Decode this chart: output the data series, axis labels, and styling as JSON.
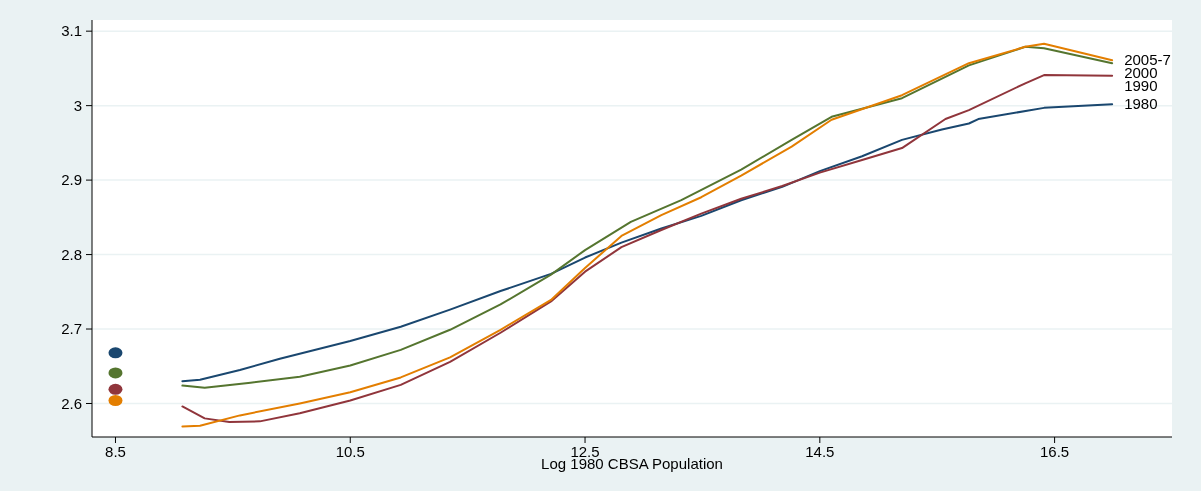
{
  "chart_data": {
    "type": "line",
    "xlabel": "Log 1980 CBSA Population",
    "xlim": [
      8.3,
      17.5
    ],
    "ylim": [
      2.555,
      3.115
    ],
    "xticks": [
      8.5,
      10.5,
      12.5,
      14.5,
      16.5
    ],
    "yticks": [
      2.6,
      2.7,
      2.8,
      2.9,
      3,
      3.1
    ],
    "grid": "y",
    "marker": "none",
    "line_style": "solid",
    "series": [
      {
        "name": "1980",
        "color": "#1a476f",
        "x": [
          9.07,
          9.22,
          9.56,
          9.9,
          10.5,
          10.93,
          11.35,
          11.78,
          12.21,
          12.5,
          12.81,
          13.15,
          13.49,
          13.83,
          14.18,
          14.5,
          14.86,
          15.2,
          15.54,
          15.77,
          15.85,
          16.41,
          16.99
        ],
        "values": [
          2.63,
          2.632,
          2.645,
          2.66,
          2.684,
          2.703,
          2.726,
          2.751,
          2.774,
          2.796,
          2.816,
          2.835,
          2.852,
          2.873,
          2.891,
          2.912,
          2.932,
          2.954,
          2.968,
          2.976,
          2.982,
          2.997,
          3.002
        ]
      },
      {
        "name": "1990",
        "color": "#90353b",
        "x": [
          9.07,
          9.26,
          9.47,
          9.73,
          10.07,
          10.5,
          10.93,
          11.35,
          11.78,
          12.21,
          12.5,
          12.81,
          13.15,
          13.49,
          13.83,
          14.18,
          14.5,
          14.86,
          15.2,
          15.57,
          15.77,
          16.25,
          16.41,
          16.99
        ],
        "values": [
          2.596,
          2.58,
          2.575,
          2.576,
          2.587,
          2.604,
          2.625,
          2.656,
          2.695,
          2.737,
          2.777,
          2.81,
          2.833,
          2.855,
          2.875,
          2.892,
          2.91,
          2.927,
          2.943,
          2.982,
          2.994,
          3.03,
          3.041,
          3.04
        ]
      },
      {
        "name": "2000",
        "color": "#55752f",
        "x": [
          9.07,
          9.26,
          9.65,
          10.07,
          10.5,
          10.93,
          11.35,
          11.78,
          12.21,
          12.5,
          12.89,
          13.32,
          13.83,
          14.26,
          14.6,
          15.2,
          15.77,
          16.25,
          16.41,
          16.99
        ],
        "values": [
          2.624,
          2.621,
          2.628,
          2.636,
          2.651,
          2.672,
          2.699,
          2.733,
          2.773,
          2.806,
          2.844,
          2.873,
          2.914,
          2.954,
          2.985,
          3.01,
          3.054,
          3.079,
          3.077,
          3.057
        ]
      },
      {
        "name": "2005-7",
        "color": "#e37e00",
        "x": [
          9.07,
          9.22,
          9.56,
          10.07,
          10.5,
          10.93,
          11.35,
          11.78,
          12.21,
          12.5,
          12.81,
          13.15,
          13.49,
          13.83,
          14.26,
          14.6,
          15.2,
          15.77,
          16.25,
          16.41,
          16.99
        ],
        "values": [
          2.569,
          2.57,
          2.584,
          2.6,
          2.615,
          2.635,
          2.662,
          2.699,
          2.739,
          2.782,
          2.825,
          2.853,
          2.877,
          2.906,
          2.945,
          2.981,
          3.014,
          3.057,
          3.079,
          3.083,
          3.061
        ]
      },
      {
        "type": "scatter",
        "marker": "circle",
        "color": "#1a476f",
        "x": [
          8.5
        ],
        "values": [
          2.668
        ]
      },
      {
        "type": "scatter",
        "marker": "circle",
        "color": "#55752f",
        "x": [
          8.5
        ],
        "values": [
          2.641
        ]
      },
      {
        "type": "scatter",
        "marker": "circle",
        "color": "#90353b",
        "x": [
          8.5
        ],
        "values": [
          2.619
        ]
      },
      {
        "type": "scatter",
        "marker": "circle",
        "color": "#e37e00",
        "x": [
          8.5
        ],
        "values": [
          2.604
        ]
      }
    ]
  }
}
